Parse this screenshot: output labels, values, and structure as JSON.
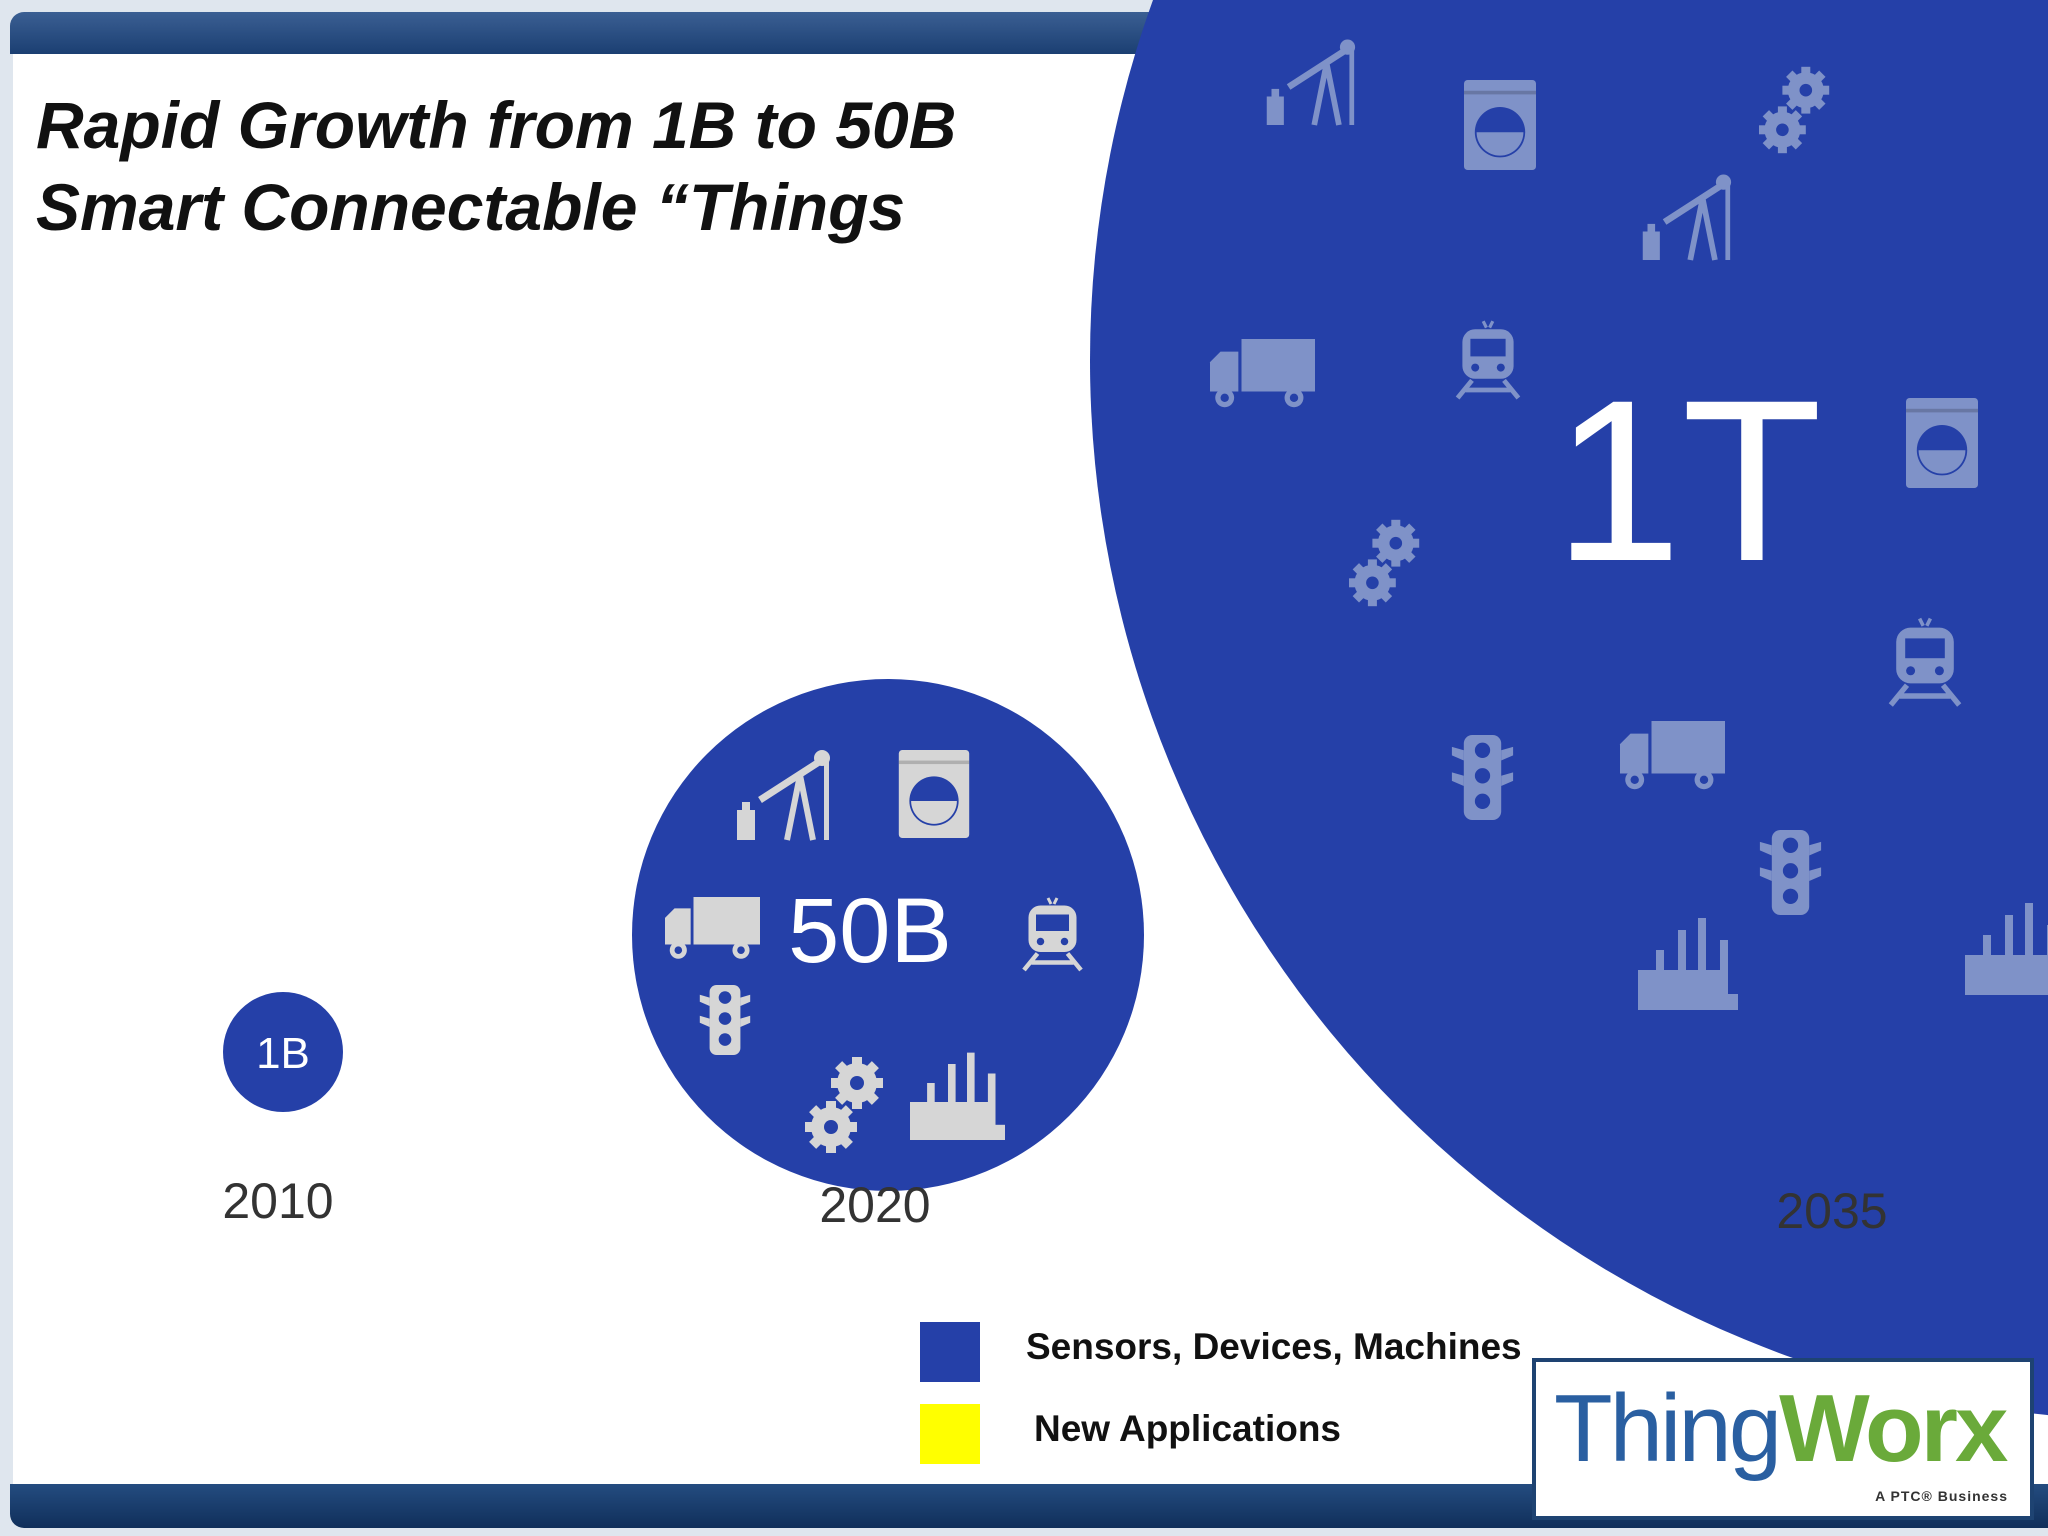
{
  "title": {
    "line1": "Rapid Growth from 1B to 50B",
    "line2": "Smart Connectable “Things"
  },
  "chart_data": {
    "type": "bubble",
    "points": [
      {
        "year": "2010",
        "value": 1000000000,
        "label": "1B"
      },
      {
        "year": "2020",
        "value": 50000000000,
        "label": "50B"
      },
      {
        "year": "2035",
        "value": 1000000000000,
        "label": "1T"
      }
    ],
    "series_color": "#2540a8",
    "icons": [
      "oil-pump",
      "washing-machine",
      "truck",
      "train",
      "traffic-light",
      "gears",
      "factory"
    ]
  },
  "legend": [
    {
      "label": "Sensors, Devices, Machines",
      "color": "#2540a8"
    },
    {
      "label": "New Applications",
      "color": "#ffff00"
    }
  ],
  "logo": {
    "thing": "Thing",
    "worx": "Worx",
    "tagline": "A PTC® Business"
  },
  "colors": {
    "bubble": "#2540a8",
    "icon_light": "#d6d6d6",
    "icon_faded": "#7f92c8",
    "year_text": "#333333",
    "bar": "#1b3f72"
  }
}
